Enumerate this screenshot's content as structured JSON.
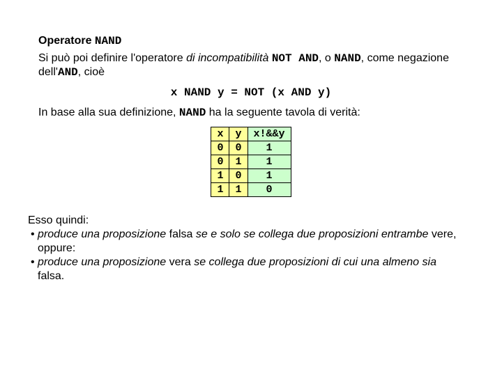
{
  "title_prefix": "Operatore ",
  "title_op": "NAND",
  "p1_a": "Si può poi definire l'operatore ",
  "p1_incompat": "di incompatibilità",
  "p1_b": " ",
  "p1_notand": "NOT AND",
  "p1_c": ", o ",
  "p1_nand": "NAND",
  "p1_d": ", come negazione dell'",
  "p1_and": "AND",
  "p1_e": ", cioè",
  "formula": "x NAND y = NOT (x AND y)",
  "p2_a": "In base alla sua definizione, ",
  "p2_nand": "NAND",
  "p2_b": " ha la seguente tavola di verità:",
  "table": {
    "headers": [
      "x",
      "y",
      "x!&&y"
    ],
    "col_classes": [
      "col-input",
      "col-input",
      "col-output"
    ],
    "rows": [
      [
        "0",
        "0",
        "1"
      ],
      [
        "0",
        "1",
        "1"
      ],
      [
        "1",
        "0",
        "1"
      ],
      [
        "1",
        "1",
        "0"
      ]
    ]
  },
  "p3_intro": "Esso quindi:",
  "b1_a": "• ",
  "b1_it1": "produce una proposizione",
  "b1_mid1": " falsa ",
  "b1_it2": "se e solo se collega due proposizioni entrambe",
  "b1_end": " vere, oppure:",
  "b2_a": "• ",
  "b2_it1": "produce una proposizione",
  "b2_mid1": " vera ",
  "b2_it2": "se collega due proposizioni di cui una almeno sia",
  "b2_end": " falsa."
}
